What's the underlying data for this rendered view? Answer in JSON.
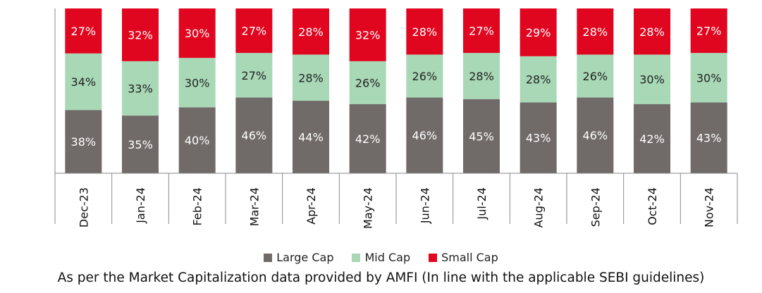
{
  "chart_data": {
    "type": "bar",
    "stacked": true,
    "percent_stacked": true,
    "categories": [
      "Dec-23",
      "Jan-24",
      "Feb-24",
      "Mar-24",
      "Apr-24",
      "May-24",
      "Jun-24",
      "Jul-24",
      "Aug-24",
      "Sep-24",
      "Oct-24",
      "Nov-24"
    ],
    "series": [
      {
        "name": "Large Cap",
        "color": "#706b69",
        "values": [
          38,
          35,
          40,
          46,
          44,
          42,
          46,
          45,
          43,
          46,
          42,
          43
        ]
      },
      {
        "name": "Mid Cap",
        "color": "#a8d8b6",
        "values": [
          34,
          33,
          30,
          27,
          28,
          26,
          26,
          28,
          28,
          26,
          30,
          30
        ]
      },
      {
        "name": "Small Cap",
        "color": "#e1061f",
        "values": [
          27,
          32,
          30,
          27,
          28,
          32,
          28,
          27,
          29,
          28,
          28,
          27
        ]
      }
    ],
    "value_suffix": "%",
    "legend_position": "bottom"
  },
  "footnote": "As per the Market Capitalization data provided by AMFI (In line with the applicable SEBI guidelines)"
}
